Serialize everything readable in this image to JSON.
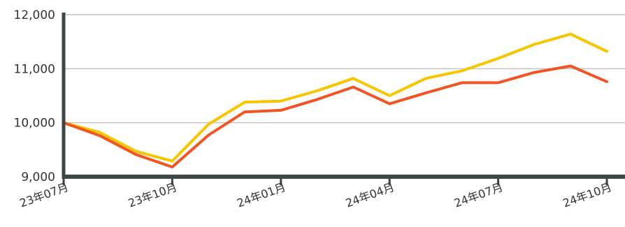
{
  "chart_data": {
    "type": "line",
    "x": [
      "23年07月",
      "23年08月",
      "23年09月",
      "23年10月",
      "23年11月",
      "23年12月",
      "24年01月",
      "24年02月",
      "24年03月",
      "24年04月",
      "24年05月",
      "24年06月",
      "24年07月",
      "24年08月",
      "24年09月",
      "24年10月"
    ],
    "x_ticks": [
      "23年07月",
      "23年10月",
      "24年01月",
      "24年04月",
      "24年07月",
      "24年10月"
    ],
    "series": [
      {
        "color": "#f7c600",
        "values": [
          10000,
          9820,
          9470,
          9290,
          9970,
          10380,
          10400,
          10590,
          10820,
          10500,
          10820,
          10960,
          11190,
          11450,
          11640,
          11320
        ]
      },
      {
        "color": "#f05523",
        "values": [
          10000,
          9760,
          9410,
          9180,
          9770,
          10200,
          10230,
          10430,
          10660,
          10350,
          10550,
          10740,
          10740,
          10930,
          11050,
          10760
        ]
      }
    ],
    "y_ticks": [
      "9,000",
      "10,000",
      "11,000",
      "12,000"
    ],
    "ylim": [
      9000,
      12000
    ],
    "grid": true
  }
}
